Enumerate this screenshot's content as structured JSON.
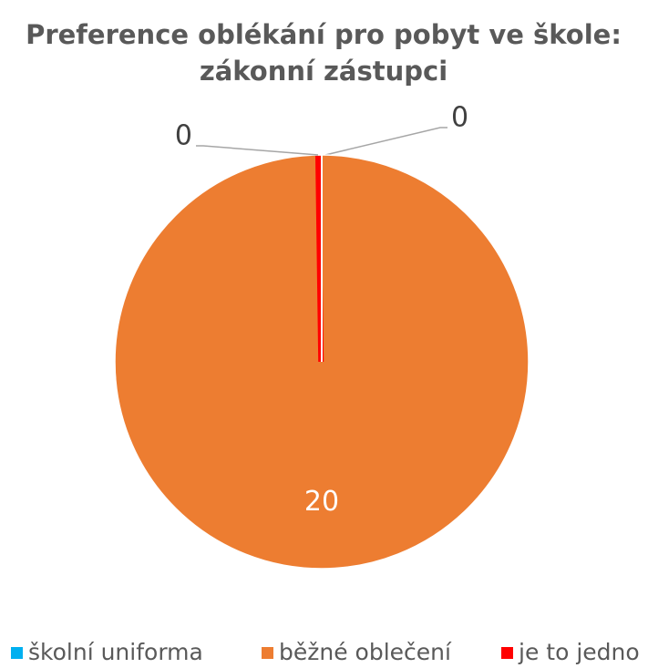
{
  "chart_data": {
    "type": "pie",
    "title": "Preference oblékání pro pobyt ve škole: zákonní zástupci",
    "categories": [
      "školní uniforma",
      "běžné oblečení",
      "je to jedno"
    ],
    "values": [
      0,
      20,
      0
    ],
    "colors": [
      "#00b0f0",
      "#ed7d31",
      "#ff0000"
    ],
    "legend": "bottom"
  }
}
